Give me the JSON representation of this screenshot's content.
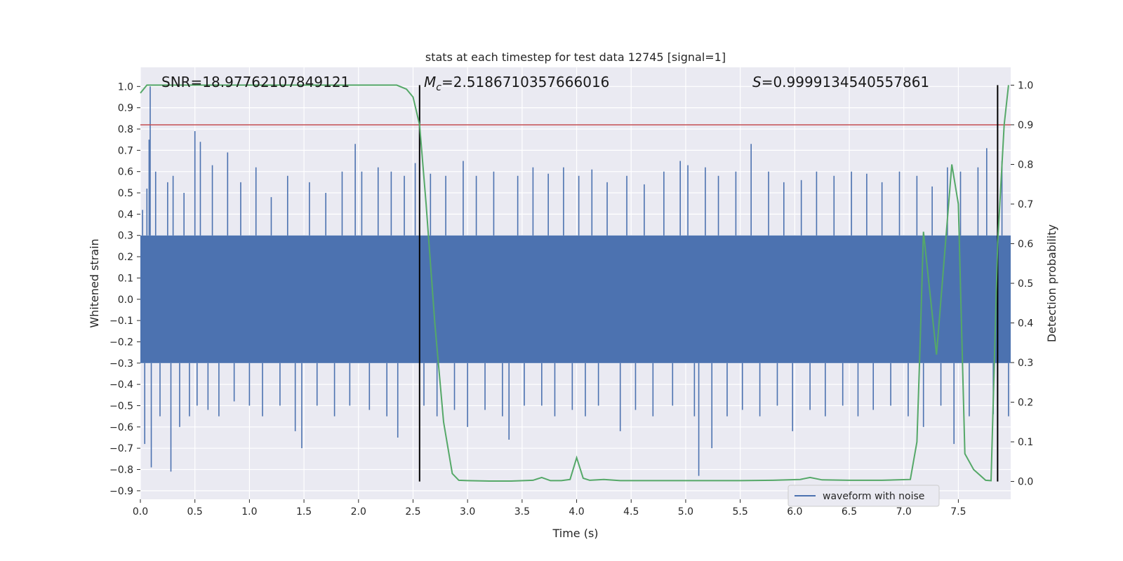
{
  "chart_data": {
    "type": "line",
    "title": "stats at each timestep for test data 12745 [signal=1]",
    "xlabel": "Time (s)",
    "ylabel_left": "Whitened strain",
    "ylabel_right": "Detection probability",
    "xlim": [
      0.0,
      7.98
    ],
    "ylim_left": [
      -0.94,
      1.09
    ],
    "ylim_right": [
      -0.045,
      1.045
    ],
    "x_ticks": [
      "0.0",
      "0.5",
      "1.0",
      "1.5",
      "2.0",
      "2.5",
      "3.0",
      "3.5",
      "4.0",
      "4.5",
      "5.0",
      "5.5",
      "6.0",
      "6.5",
      "7.0",
      "7.5"
    ],
    "x_tick_values": [
      0.0,
      0.5,
      1.0,
      1.5,
      2.0,
      2.5,
      3.0,
      3.5,
      4.0,
      4.5,
      5.0,
      5.5,
      6.0,
      6.5,
      7.0,
      7.5
    ],
    "y_left_ticks": [
      "1.0",
      "0.9",
      "0.8",
      "0.7",
      "0.6",
      "0.5",
      "0.4",
      "0.3",
      "0.2",
      "0.1",
      "0.0",
      "−0.1",
      "−0.2",
      "−0.3",
      "−0.4",
      "−0.5",
      "−0.6",
      "−0.7",
      "−0.8",
      "−0.9"
    ],
    "y_left_tick_values": [
      1.0,
      0.9,
      0.8,
      0.7,
      0.6,
      0.5,
      0.4,
      0.3,
      0.2,
      0.1,
      0.0,
      -0.1,
      -0.2,
      -0.3,
      -0.4,
      -0.5,
      -0.6,
      -0.7,
      -0.8,
      -0.9
    ],
    "y_right_ticks": [
      "1.0",
      "0.9",
      "0.8",
      "0.7",
      "0.6",
      "0.5",
      "0.4",
      "0.3",
      "0.2",
      "0.1",
      "0.0"
    ],
    "y_right_tick_values": [
      1.0,
      0.9,
      0.8,
      0.7,
      0.6,
      0.5,
      0.4,
      0.3,
      0.2,
      0.1,
      0.0
    ],
    "annotations": {
      "snr": "SNR=18.97762107849121",
      "mc_symbol": "M",
      "mc_sub": "c",
      "mc_value": "=2.5186710357666016",
      "s_symbol": "S",
      "s_value": "=0.9999134540557861"
    },
    "threshold_right": 0.9,
    "vertical_lines_x": [
      2.56,
      7.86
    ],
    "waveform": {
      "name": "waveform with noise",
      "color": "#4c72b0",
      "band_upper": 0.3,
      "band_lower": -0.3,
      "spikes": [
        [
          0.02,
          0.42
        ],
        [
          0.04,
          -0.68
        ],
        [
          0.06,
          0.52
        ],
        [
          0.08,
          0.75
        ],
        [
          0.09,
          1.0
        ],
        [
          0.1,
          -0.79
        ],
        [
          0.14,
          0.6
        ],
        [
          0.18,
          -0.55
        ],
        [
          0.25,
          0.55
        ],
        [
          0.28,
          -0.81
        ],
        [
          0.3,
          0.58
        ],
        [
          0.36,
          -0.6
        ],
        [
          0.4,
          0.5
        ],
        [
          0.45,
          -0.55
        ],
        [
          0.5,
          0.79
        ],
        [
          0.52,
          -0.5
        ],
        [
          0.55,
          0.74
        ],
        [
          0.62,
          -0.52
        ],
        [
          0.66,
          0.63
        ],
        [
          0.72,
          -0.55
        ],
        [
          0.8,
          0.69
        ],
        [
          0.86,
          -0.48
        ],
        [
          0.92,
          0.55
        ],
        [
          1.0,
          -0.5
        ],
        [
          1.06,
          0.62
        ],
        [
          1.12,
          -0.55
        ],
        [
          1.2,
          0.48
        ],
        [
          1.28,
          -0.5
        ],
        [
          1.35,
          0.58
        ],
        [
          1.42,
          -0.62
        ],
        [
          1.48,
          -0.7
        ],
        [
          1.55,
          0.55
        ],
        [
          1.62,
          -0.5
        ],
        [
          1.7,
          0.5
        ],
        [
          1.78,
          -0.55
        ],
        [
          1.85,
          0.6
        ],
        [
          1.92,
          -0.5
        ],
        [
          1.97,
          0.73
        ],
        [
          2.03,
          0.6
        ],
        [
          2.1,
          -0.52
        ],
        [
          2.18,
          0.62
        ],
        [
          2.26,
          -0.55
        ],
        [
          2.3,
          0.6
        ],
        [
          2.36,
          -0.65
        ],
        [
          2.42,
          0.58
        ],
        [
          2.52,
          0.64
        ],
        [
          2.6,
          -0.5
        ],
        [
          2.66,
          0.59
        ],
        [
          2.72,
          -0.55
        ],
        [
          2.8,
          0.58
        ],
        [
          2.88,
          -0.52
        ],
        [
          2.96,
          0.65
        ],
        [
          3.0,
          -0.6
        ],
        [
          3.08,
          0.58
        ],
        [
          3.16,
          -0.52
        ],
        [
          3.24,
          0.6
        ],
        [
          3.32,
          -0.55
        ],
        [
          3.38,
          -0.66
        ],
        [
          3.46,
          0.58
        ],
        [
          3.52,
          -0.5
        ],
        [
          3.6,
          0.62
        ],
        [
          3.68,
          -0.5
        ],
        [
          3.74,
          0.59
        ],
        [
          3.8,
          -0.55
        ],
        [
          3.88,
          0.62
        ],
        [
          3.96,
          -0.52
        ],
        [
          4.02,
          0.58
        ],
        [
          4.08,
          -0.55
        ],
        [
          4.14,
          0.61
        ],
        [
          4.2,
          -0.5
        ],
        [
          4.28,
          0.55
        ],
        [
          4.4,
          -0.62
        ],
        [
          4.46,
          0.58
        ],
        [
          4.54,
          -0.52
        ],
        [
          4.62,
          0.54
        ],
        [
          4.7,
          -0.55
        ],
        [
          4.8,
          0.6
        ],
        [
          4.88,
          -0.5
        ],
        [
          4.95,
          0.65
        ],
        [
          5.02,
          0.63
        ],
        [
          5.08,
          -0.55
        ],
        [
          5.12,
          -0.83
        ],
        [
          5.18,
          0.62
        ],
        [
          5.24,
          -0.7
        ],
        [
          5.3,
          0.58
        ],
        [
          5.38,
          -0.55
        ],
        [
          5.46,
          0.6
        ],
        [
          5.52,
          -0.52
        ],
        [
          5.6,
          0.73
        ],
        [
          5.68,
          -0.55
        ],
        [
          5.76,
          0.6
        ],
        [
          5.84,
          -0.5
        ],
        [
          5.9,
          0.55
        ],
        [
          5.98,
          -0.62
        ],
        [
          6.06,
          0.56
        ],
        [
          6.14,
          -0.52
        ],
        [
          6.2,
          0.6
        ],
        [
          6.28,
          -0.55
        ],
        [
          6.36,
          0.58
        ],
        [
          6.44,
          -0.5
        ],
        [
          6.52,
          0.6
        ],
        [
          6.58,
          -0.55
        ],
        [
          6.66,
          0.59
        ],
        [
          6.72,
          -0.52
        ],
        [
          6.8,
          0.55
        ],
        [
          6.88,
          -0.5
        ],
        [
          6.96,
          0.6
        ],
        [
          7.04,
          -0.55
        ],
        [
          7.12,
          0.58
        ],
        [
          7.18,
          -0.6
        ],
        [
          7.26,
          0.53
        ],
        [
          7.34,
          -0.5
        ],
        [
          7.4,
          0.62
        ],
        [
          7.46,
          -0.68
        ],
        [
          7.52,
          0.6
        ],
        [
          7.6,
          -0.55
        ],
        [
          7.68,
          0.62
        ],
        [
          7.76,
          0.71
        ],
        [
          7.82,
          -0.54
        ],
        [
          7.9,
          0.65
        ],
        [
          7.96,
          -0.55
        ]
      ]
    },
    "probability_line": {
      "name": "probability",
      "color": "#55a868",
      "x": [
        0.0,
        0.06,
        0.1,
        0.5,
        1.0,
        1.5,
        2.0,
        2.35,
        2.44,
        2.5,
        2.56,
        2.62,
        2.7,
        2.78,
        2.86,
        2.92,
        3.0,
        3.2,
        3.4,
        3.6,
        3.68,
        3.76,
        3.86,
        3.94,
        4.0,
        4.06,
        4.12,
        4.25,
        4.4,
        4.6,
        5.0,
        5.5,
        5.8,
        6.05,
        6.14,
        6.25,
        6.5,
        6.8,
        7.06,
        7.12,
        7.15,
        7.18,
        7.3,
        7.44,
        7.5,
        7.56,
        7.64,
        7.75,
        7.8,
        7.86,
        7.92,
        7.96
      ],
      "y": [
        0.98,
        1.0,
        1.0,
        1.0,
        1.0,
        1.0,
        1.0,
        1.0,
        0.99,
        0.97,
        0.9,
        0.7,
        0.4,
        0.15,
        0.02,
        0.003,
        0.002,
        0.001,
        0.001,
        0.003,
        0.01,
        0.002,
        0.002,
        0.005,
        0.06,
        0.008,
        0.003,
        0.005,
        0.002,
        0.002,
        0.002,
        0.002,
        0.003,
        0.005,
        0.01,
        0.004,
        0.003,
        0.003,
        0.005,
        0.1,
        0.35,
        0.63,
        0.32,
        0.8,
        0.7,
        0.07,
        0.03,
        0.003,
        0.002,
        0.6,
        0.9,
        1.0
      ]
    },
    "legend": {
      "label": "waveform with noise",
      "placement": "lower-right"
    }
  }
}
